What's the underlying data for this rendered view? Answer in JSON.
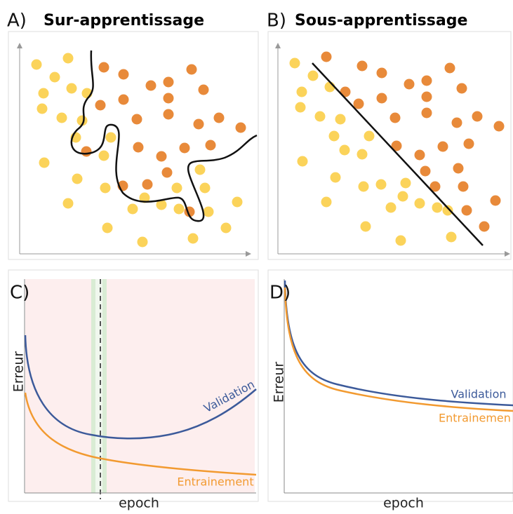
{
  "panels": [
    {
      "label": "A)",
      "title": "Sur-apprentissage"
    },
    {
      "label": "B)",
      "title": "Sous-apprentissage"
    },
    {
      "label": "C)",
      "y_label": "Erreur",
      "x_label": "epoch",
      "curves": [
        "Validation",
        "Entrainement"
      ]
    },
    {
      "label": "D)",
      "y_label": "Erreur",
      "x_label": "epoch",
      "curves": [
        "Validation",
        "Entrainemen"
      ]
    }
  ]
}
